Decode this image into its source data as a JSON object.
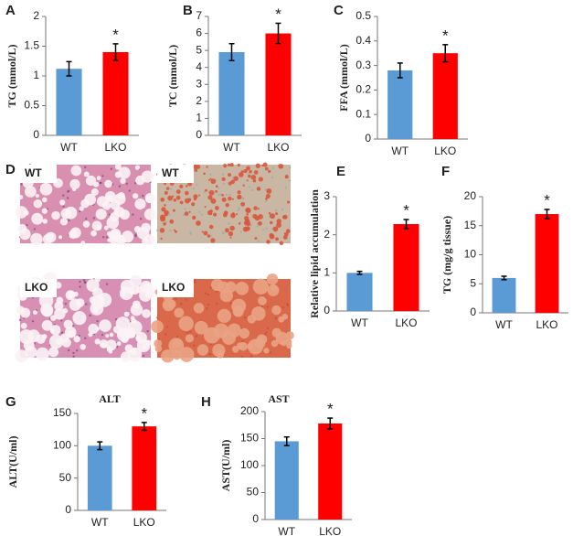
{
  "chart_data": [
    {
      "type": "bar",
      "panel": "A",
      "ylabel": "TG (mmol/L)",
      "categories": [
        "WT",
        "LKO"
      ],
      "values": [
        1.12,
        1.4
      ],
      "errors": [
        0.12,
        0.14
      ],
      "colors": [
        "#5b9bd5",
        "#ff0000"
      ],
      "ylim": [
        0,
        2
      ],
      "yticks": [
        0,
        0.5,
        1,
        1.5,
        2
      ],
      "annotation": "*"
    },
    {
      "type": "bar",
      "panel": "B",
      "ylabel": "TC (mmol/L)",
      "categories": [
        "WT",
        "LKO"
      ],
      "values": [
        4.9,
        6.0
      ],
      "errors": [
        0.5,
        0.6
      ],
      "colors": [
        "#5b9bd5",
        "#ff0000"
      ],
      "ylim": [
        0,
        7
      ],
      "yticks": [
        0,
        1,
        2,
        3,
        4,
        5,
        6,
        7
      ],
      "annotation": "*"
    },
    {
      "type": "bar",
      "panel": "C",
      "ylabel": "FFA (mmol/L)",
      "categories": [
        "WT",
        "LKO"
      ],
      "values": [
        0.28,
        0.35
      ],
      "errors": [
        0.03,
        0.035
      ],
      "colors": [
        "#5b9bd5",
        "#ff0000"
      ],
      "ylim": [
        0,
        0.5
      ],
      "yticks": [
        0,
        0.1,
        0.2,
        0.3,
        0.4,
        0.5
      ],
      "annotation": "*"
    },
    {
      "type": "bar",
      "panel": "E",
      "ylabel": "Relative lipid accumulation",
      "categories": [
        "WT",
        "LKO"
      ],
      "values": [
        1.0,
        2.28
      ],
      "errors": [
        0.04,
        0.12
      ],
      "colors": [
        "#5b9bd5",
        "#ff0000"
      ],
      "ylim": [
        0,
        3
      ],
      "yticks": [
        0,
        1,
        2,
        3
      ],
      "annotation": "*"
    },
    {
      "type": "bar",
      "panel": "F",
      "ylabel": "TG (mg/g tissue)",
      "categories": [
        "WT",
        "LKO"
      ],
      "values": [
        6.0,
        17.0
      ],
      "errors": [
        0.3,
        0.8
      ],
      "colors": [
        "#5b9bd5",
        "#ff0000"
      ],
      "ylim": [
        0,
        20
      ],
      "yticks": [
        0,
        5,
        10,
        15,
        20
      ],
      "annotation": "*"
    },
    {
      "type": "bar",
      "panel": "G",
      "title": "ALT",
      "ylabel": "ALT(U/ml)",
      "categories": [
        "WT",
        "LKO"
      ],
      "values": [
        100,
        130
      ],
      "errors": [
        6,
        6
      ],
      "colors": [
        "#5b9bd5",
        "#ff0000"
      ],
      "ylim": [
        0,
        150
      ],
      "yticks": [
        0,
        50,
        100,
        150
      ],
      "annotation": "*"
    },
    {
      "type": "bar",
      "panel": "H",
      "title": "AST",
      "ylabel": "AST(U/ml)",
      "categories": [
        "WT",
        "LKO"
      ],
      "values": [
        145,
        178
      ],
      "errors": [
        8,
        10
      ],
      "colors": [
        "#5b9bd5",
        "#ff0000"
      ],
      "ylim": [
        0,
        200
      ],
      "yticks": [
        0,
        50,
        100,
        150,
        200
      ],
      "annotation": "*"
    }
  ],
  "histology": {
    "panel": "D",
    "images": [
      {
        "label": "WT"
      },
      {
        "label": "WT"
      },
      {
        "label": "LKO"
      },
      {
        "label": "LKO"
      }
    ]
  }
}
